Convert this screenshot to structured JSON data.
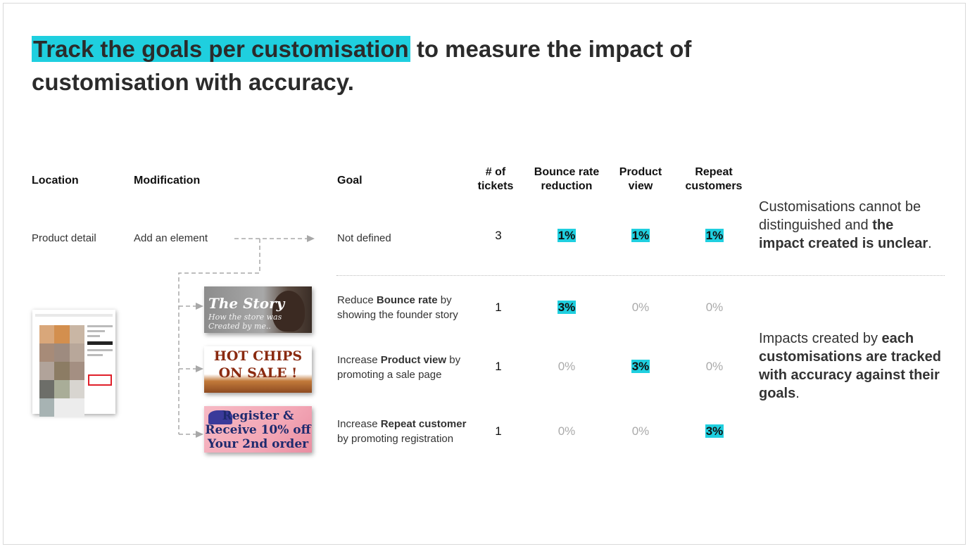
{
  "title": {
    "highlight": "Track the goals per customisation",
    "rest_line1": " to measure the impact of",
    "line2": "customisation with accuracy."
  },
  "headers": {
    "location": "Location",
    "modification": "Modification",
    "goal": "Goal",
    "tickets_1": "# of",
    "tickets_2": "tickets",
    "bounce_1": "Bounce rate",
    "bounce_2": "reduction",
    "product_1": "Product",
    "product_2": "view",
    "repeat_1": "Repeat",
    "repeat_2": "customers"
  },
  "row_top": {
    "location": "Product detail",
    "modification": "Add an element",
    "goal": "Not defined",
    "tickets": "3",
    "bounce": "1%",
    "product": "1%",
    "repeat": "1%"
  },
  "rows": [
    {
      "goal_pre": "Reduce ",
      "goal_bold": "Bounce rate",
      "goal_post": " by",
      "goal_line2": "showing the founder story",
      "tickets": "1",
      "bounce": "3%",
      "product": "0%",
      "repeat": "0%"
    },
    {
      "goal_pre": "Increase ",
      "goal_bold": "Product view",
      "goal_post": " by",
      "goal_line2": "promoting a sale page",
      "tickets": "1",
      "bounce": "0%",
      "product": "3%",
      "repeat": "0%"
    },
    {
      "goal_pre": "Increase ",
      "goal_bold": "Repeat customer",
      "goal_post": "",
      "goal_line2": "by promoting registration",
      "tickets": "1",
      "bounce": "0%",
      "product": "0%",
      "repeat": "3%"
    }
  ],
  "banners": {
    "story_title": "The Story",
    "story_sub1": "How the store was",
    "story_sub2": "Created by me..",
    "chips_1": "HOT CHIPS",
    "chips_2": "ON SALE !",
    "reg_1": "Register &",
    "reg_2": "Receive 10% off",
    "reg_3": "Your 2nd order"
  },
  "notes": {
    "top_pre": "Customisations cannot be distinguished and ",
    "top_bold": "the impact created is unclear",
    "top_post": ".",
    "bottom_pre": "Impacts created by ",
    "bottom_bold": "each customisations are tracked with accuracy against their goals",
    "bottom_post": "."
  },
  "colors": {
    "highlight": "#1fcfdf",
    "muted_value": "#aaaaaa"
  }
}
